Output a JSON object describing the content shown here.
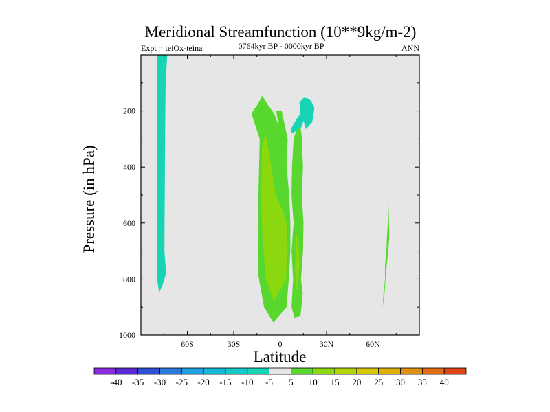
{
  "chart_data": {
    "type": "contour",
    "title": "Meridional Streamfunction (10**9kg/m-2)",
    "subtitle": "0764kyr BP - 0000kyr BP",
    "left_label": "Expt = teiOx-teina",
    "right_label": "ANN",
    "xlabel": "Latitude",
    "ylabel": "Pressure (in hPa)",
    "xlim": [
      -90,
      90
    ],
    "ylim": [
      1000,
      0
    ],
    "x_ticks": [
      {
        "value": -60,
        "label": "60S"
      },
      {
        "value": -30,
        "label": "30S"
      },
      {
        "value": 0,
        "label": "0"
      },
      {
        "value": 30,
        "label": "30N"
      },
      {
        "value": 60,
        "label": "60N"
      }
    ],
    "y_ticks": [
      {
        "value": 200,
        "label": "200"
      },
      {
        "value": 400,
        "label": "400"
      },
      {
        "value": 600,
        "label": "600"
      },
      {
        "value": 800,
        "label": "800"
      },
      {
        "value": 1000,
        "label": "1000"
      }
    ],
    "background_color": "#e6e6e6",
    "colorbar": {
      "labels": [
        "-40",
        "-35",
        "-30",
        "-25",
        "-20",
        "-15",
        "-10",
        "-5",
        "5",
        "10",
        "15",
        "20",
        "25",
        "30",
        "35",
        "40"
      ],
      "colors": [
        "#8a2be2",
        "#5a28d6",
        "#2e50d6",
        "#2a78e0",
        "#1fa0e0",
        "#16b8d8",
        "#14c8c8",
        "#17d4b4",
        "#e6e6e6",
        "#58d82e",
        "#8cd80e",
        "#b4d40a",
        "#d4c808",
        "#e0b00a",
        "#e29010",
        "#e26a14",
        "#de4414"
      ]
    },
    "regions": [
      {
        "name": "antarctic-negative-cell",
        "value": -7.5,
        "color": "#17d4b4",
        "polygon": [
          [
            -79.5,
            0
          ],
          [
            -73,
            0
          ],
          [
            -74,
            100
          ],
          [
            -74.2,
            200
          ],
          [
            -74.4,
            300
          ],
          [
            -74.5,
            400
          ],
          [
            -74.6,
            500
          ],
          [
            -74.7,
            600
          ],
          [
            -74.8,
            700
          ],
          [
            -73.7,
            780
          ],
          [
            -76,
            820
          ],
          [
            -78.2,
            850
          ],
          [
            -79.5,
            800
          ],
          [
            -79.7,
            600
          ],
          [
            -79.8,
            400
          ],
          [
            -79.7,
            200
          ]
        ]
      },
      {
        "name": "tropical-positive-cell-south",
        "value": 7.5,
        "color": "#58d82e",
        "polygon": [
          [
            -15.8,
            190
          ],
          [
            -11.5,
            145
          ],
          [
            -7.7,
            180
          ],
          [
            -3.8,
            210
          ],
          [
            -1.1,
            250
          ],
          [
            -2.5,
            200
          ],
          [
            1,
            200
          ],
          [
            4.9,
            300
          ],
          [
            4.2,
            400
          ],
          [
            5.9,
            500
          ],
          [
            6.6,
            600
          ],
          [
            6.6,
            700
          ],
          [
            5.6,
            800
          ],
          [
            4.2,
            900
          ],
          [
            -4.4,
            955
          ],
          [
            -10.4,
            900
          ],
          [
            -14.3,
            780
          ],
          [
            -14,
            500
          ],
          [
            -13.2,
            300
          ],
          [
            -18.5,
            210
          ],
          [
            -16.5,
            190
          ]
        ]
      },
      {
        "name": "tropical-positive-cell-south-core",
        "value": 12.5,
        "color": "#8cd80e",
        "polygon": [
          [
            -11.8,
            330
          ],
          [
            -9.4,
            280
          ],
          [
            -5.6,
            400
          ],
          [
            -2.8,
            500
          ],
          [
            2.1,
            560
          ],
          [
            4.2,
            600
          ],
          [
            4.9,
            700
          ],
          [
            3.8,
            800
          ],
          [
            -4.1,
            880
          ],
          [
            -9.1,
            800
          ],
          [
            -11.5,
            650
          ],
          [
            -12.2,
            500
          ]
        ]
      },
      {
        "name": "tropical-positive-cell-north",
        "value": 7.5,
        "color": "#58d82e",
        "polygon": [
          [
            8.7,
            300
          ],
          [
            12.6,
            230
          ],
          [
            13.9,
            290
          ],
          [
            14.8,
            400
          ],
          [
            14,
            500
          ],
          [
            15.1,
            600
          ],
          [
            14.8,
            700
          ],
          [
            13.5,
            800
          ],
          [
            14.6,
            850
          ],
          [
            13.2,
            930
          ],
          [
            9.4,
            940
          ],
          [
            7.4,
            900
          ],
          [
            8.4,
            800
          ],
          [
            7.4,
            700
          ],
          [
            8.7,
            600
          ],
          [
            7.4,
            500
          ],
          [
            7.7,
            400
          ]
        ]
      },
      {
        "name": "tropical-positive-cell-north-core",
        "value": 12.5,
        "color": "#8cd80e",
        "polygon": [
          [
            10.5,
            640
          ],
          [
            11.8,
            660
          ],
          [
            12.5,
            750
          ],
          [
            11.5,
            830
          ],
          [
            10.5,
            840
          ],
          [
            9.7,
            760
          ]
        ]
      },
      {
        "name": "upper-negative-cell",
        "value": -7.5,
        "color": "#17d4b4",
        "polygon": [
          [
            12.5,
            170
          ],
          [
            15.5,
            150
          ],
          [
            19.8,
            160
          ],
          [
            22.2,
            190
          ],
          [
            20.7,
            240
          ],
          [
            16.6,
            265
          ],
          [
            15.2,
            235
          ],
          [
            13.5,
            260
          ],
          [
            7.7,
            280
          ],
          [
            6.9,
            265
          ],
          [
            10.5,
            230
          ],
          [
            13.2,
            210
          ]
        ]
      },
      {
        "name": "arctic-positive-cell",
        "value": 7.5,
        "color": "#58d82e",
        "polygon": [
          [
            70,
            530
          ],
          [
            69.6,
            600
          ],
          [
            69,
            650
          ],
          [
            68.7,
            700
          ],
          [
            67.8,
            750
          ],
          [
            67.8,
            800
          ],
          [
            66.8,
            850
          ],
          [
            66.3,
            900
          ],
          [
            67.5,
            850
          ],
          [
            68.3,
            780
          ],
          [
            69.5,
            720
          ],
          [
            70.6,
            650
          ],
          [
            70.4,
            600
          ]
        ]
      }
    ]
  }
}
